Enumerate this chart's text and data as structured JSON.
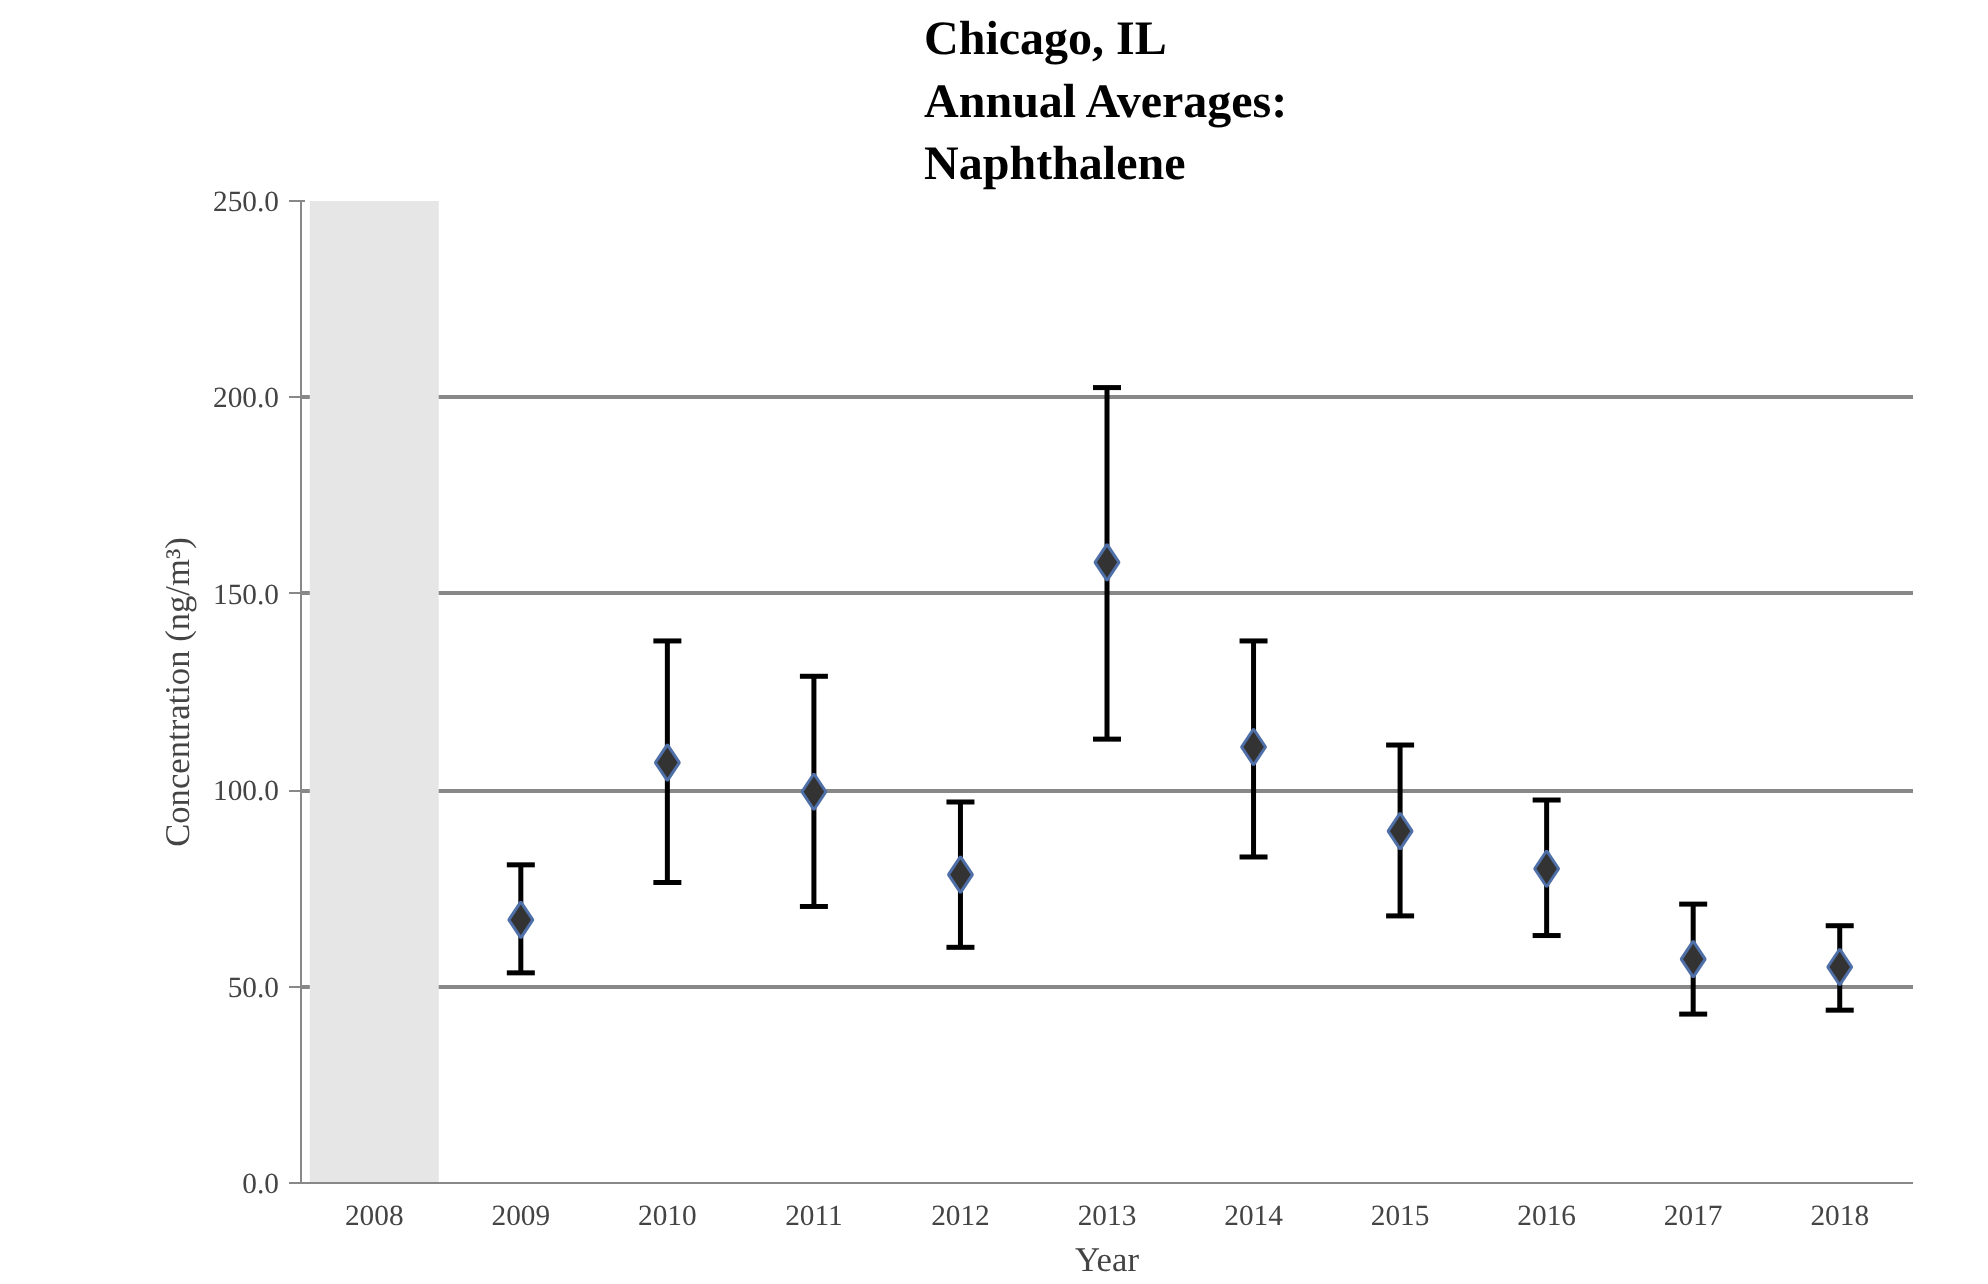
{
  "chart_data": {
    "type": "scatter",
    "title": "Chicago, IL\nAnnual Averages:\nNaphthalene",
    "xlabel": "Year",
    "ylabel": "Concentration (ng/m³)",
    "categories": [
      "2008",
      "2009",
      "2010",
      "2011",
      "2012",
      "2013",
      "2014",
      "2015",
      "2016",
      "2017",
      "2018"
    ],
    "series": [
      {
        "color": "#333333",
        "values": [
          null,
          67,
          107,
          99.6,
          78.5,
          158,
          111,
          89.6,
          80,
          57,
          55
        ],
        "errors": [
          null,
          [
            53.5,
            81
          ],
          [
            76.5,
            138
          ],
          [
            70.4,
            129
          ],
          [
            60,
            97
          ],
          [
            113,
            202.5
          ],
          [
            83,
            138
          ],
          [
            68,
            111.5
          ],
          [
            63,
            97.5
          ],
          [
            43,
            71
          ],
          [
            44,
            65.5
          ]
        ]
      }
    ],
    "ylim": [
      0,
      250
    ],
    "yticks": [
      {
        "value": 0,
        "label": "0.0"
      },
      {
        "value": 50,
        "label": "50.0"
      },
      {
        "value": 100,
        "label": "100.0"
      },
      {
        "value": 150,
        "label": "150.0"
      },
      {
        "value": 200,
        "label": "200.0"
      },
      {
        "value": 250,
        "label": "250.0"
      }
    ],
    "bands": [
      {
        "axis": "x",
        "from": "2008",
        "to": "2008",
        "color": "#e6e6e6"
      }
    ],
    "grid": "y",
    "marker": "diamond"
  }
}
